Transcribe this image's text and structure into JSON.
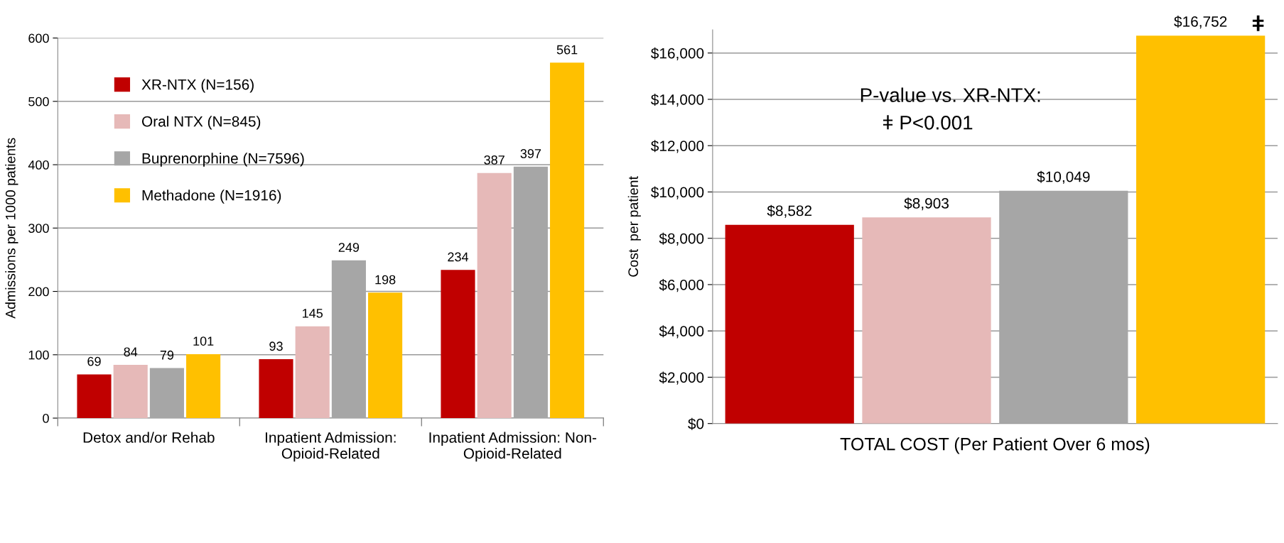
{
  "chart_data": [
    {
      "type": "bar",
      "ylabel": "Admissions per 1000 patients",
      "categories": [
        "Detox and/or Rehab",
        "Inpatient Admission:\nOpioid-Related",
        "Inpatient Admission: Non-\nOpioid-Related"
      ],
      "series": [
        {
          "name": "XR-NTX (N=156)",
          "color": "#c00000",
          "values": [
            69,
            93,
            234
          ]
        },
        {
          "name": "Oral NTX (N=845)",
          "color": "#e6b9b8",
          "values": [
            84,
            145,
            387
          ]
        },
        {
          "name": "Buprenorphine (N=7596)",
          "color": "#a6a6a6",
          "values": [
            79,
            249,
            397
          ]
        },
        {
          "name": "Methadone (N=1916)",
          "color": "#ffc000",
          "values": [
            101,
            198,
            561
          ]
        }
      ],
      "ylim": [
        0,
        600
      ],
      "yticks": [
        0,
        100,
        200,
        300,
        400,
        500,
        600
      ],
      "grid": "y",
      "legend": "top left",
      "data_labels": true
    },
    {
      "type": "bar",
      "ylabel": "Cost  per patient",
      "categories": [
        "TOTAL COST (Per Patient Over 6 mos)"
      ],
      "series": [
        {
          "color": "#c00000",
          "values": [
            8582
          ],
          "value_labels": [
            "$8,582"
          ]
        },
        {
          "color": "#e6b9b8",
          "values": [
            8903
          ],
          "value_labels": [
            "$8,903"
          ]
        },
        {
          "color": "#a6a6a6",
          "values": [
            10049
          ],
          "value_labels": [
            "$10,049"
          ]
        },
        {
          "color": "#ffc000",
          "values": [
            16752
          ],
          "value_labels": [
            "$16,752"
          ]
        }
      ],
      "ylim": [
        0,
        17000
      ],
      "yticks": [
        {
          "value": 0,
          "label": "$0"
        },
        {
          "value": 2000,
          "label": "$2,000"
        },
        {
          "value": 4000,
          "label": "$4,000"
        },
        {
          "value": 6000,
          "label": "$6,000"
        },
        {
          "value": 8000,
          "label": "$8,000"
        },
        {
          "value": 10000,
          "label": "$10,000"
        },
        {
          "value": 12000,
          "label": "$12,000"
        },
        {
          "value": 14000,
          "label": "$14,000"
        },
        {
          "value": 16000,
          "label": "$16,000"
        }
      ],
      "grid": "y",
      "annotations": [
        "P-value vs. XR-NTX:",
        "ǂ P<0.001",
        "ǂ"
      ]
    }
  ]
}
